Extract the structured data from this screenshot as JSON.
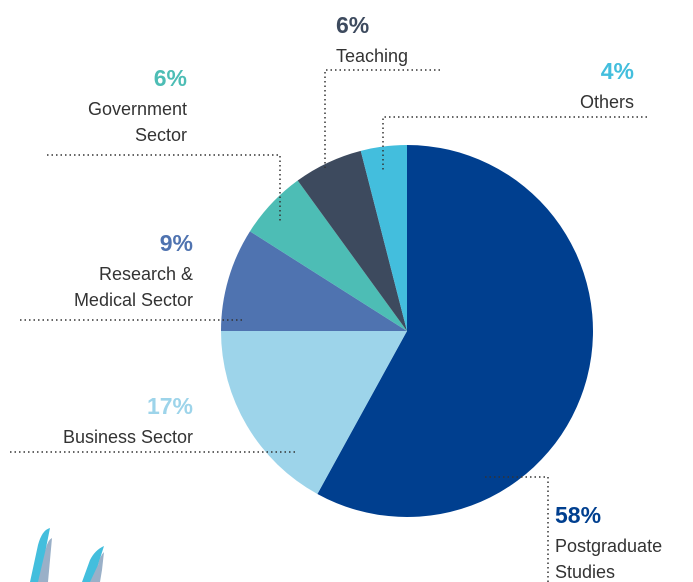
{
  "chart_data": {
    "type": "pie",
    "categories": [
      [
        "Postgraduate",
        "Studies"
      ],
      [
        "Business Sector"
      ],
      [
        "Research &",
        "Medical Sector"
      ],
      [
        "Government",
        "Sector"
      ],
      [
        "Teaching"
      ],
      [
        "Others"
      ]
    ],
    "values": [
      58,
      17,
      9,
      6,
      6,
      4
    ],
    "value_labels": [
      "58%",
      "17%",
      "9%",
      "6%",
      "6%",
      "4%"
    ],
    "colors": [
      "#003f8f",
      "#9dd4ea",
      "#4f73b0",
      "#4dbdb5",
      "#3d4a5e",
      "#43bedd"
    ]
  }
}
